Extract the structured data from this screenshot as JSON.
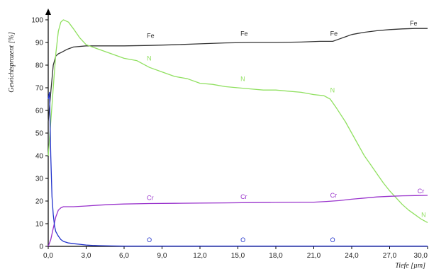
{
  "chart_data": {
    "type": "line",
    "title": "",
    "xlabel": "Tiefe [µm]",
    "ylabel": "Gewichtsprozent [%]",
    "xlim": [
      0,
      30
    ],
    "ylim": [
      0,
      100
    ],
    "x_ticks": [
      "0,0",
      "3,0",
      "6,0",
      "9,0",
      "12,0",
      "15,0",
      "18,0",
      "21,0",
      "24,0",
      "27,0",
      "30,0"
    ],
    "y_ticks": [
      "0",
      "10",
      "20",
      "30",
      "40",
      "50",
      "60",
      "70",
      "80",
      "90",
      "100"
    ],
    "grid": false,
    "series": [
      {
        "name": "Fe",
        "color": "#333333",
        "label_positions": [
          [
            7.8,
            92
          ],
          [
            15.2,
            93
          ],
          [
            22.3,
            93
          ],
          [
            28.6,
            97.5
          ]
        ],
        "points": [
          [
            0,
            55
          ],
          [
            0.2,
            68
          ],
          [
            0.4,
            80
          ],
          [
            0.6,
            84
          ],
          [
            0.8,
            85
          ],
          [
            1.0,
            85.5
          ],
          [
            1.5,
            87
          ],
          [
            2.0,
            88
          ],
          [
            3.0,
            88.5
          ],
          [
            4,
            88.5
          ],
          [
            6,
            88.5
          ],
          [
            8,
            88.7
          ],
          [
            10,
            89
          ],
          [
            12,
            89.4
          ],
          [
            14,
            89.8
          ],
          [
            16,
            90
          ],
          [
            18,
            90
          ],
          [
            20,
            90.2
          ],
          [
            21.5,
            90.5
          ],
          [
            22.5,
            90.5
          ],
          [
            23,
            91.5
          ],
          [
            23.5,
            92.5
          ],
          [
            24,
            93.5
          ],
          [
            25,
            94.5
          ],
          [
            26,
            95.2
          ],
          [
            27,
            95.7
          ],
          [
            28,
            96
          ],
          [
            29,
            96.2
          ],
          [
            30,
            96.2
          ]
        ]
      },
      {
        "name": "N",
        "color": "#90e060",
        "label_positions": [
          [
            7.8,
            82
          ],
          [
            15.2,
            73
          ],
          [
            22.3,
            68
          ],
          [
            29.5,
            13
          ]
        ],
        "points": [
          [
            0,
            40
          ],
          [
            0.2,
            55
          ],
          [
            0.4,
            70
          ],
          [
            0.6,
            85
          ],
          [
            0.8,
            95
          ],
          [
            1.0,
            99
          ],
          [
            1.2,
            100
          ],
          [
            1.6,
            99
          ],
          [
            2.0,
            96
          ],
          [
            2.5,
            92
          ],
          [
            3,
            89
          ],
          [
            4,
            87
          ],
          [
            5,
            85
          ],
          [
            6,
            83
          ],
          [
            7,
            82
          ],
          [
            8,
            79
          ],
          [
            9,
            77
          ],
          [
            10,
            75
          ],
          [
            11,
            74
          ],
          [
            12,
            72
          ],
          [
            13,
            71.5
          ],
          [
            14,
            70.5
          ],
          [
            15,
            70
          ],
          [
            16,
            69.5
          ],
          [
            17,
            69
          ],
          [
            18,
            69
          ],
          [
            19,
            68.5
          ],
          [
            20,
            68
          ],
          [
            21,
            67
          ],
          [
            21.8,
            66.5
          ],
          [
            22.3,
            65
          ],
          [
            22.8,
            61
          ],
          [
            23.5,
            55
          ],
          [
            24,
            50
          ],
          [
            24.5,
            45
          ],
          [
            25,
            40
          ],
          [
            25.5,
            36
          ],
          [
            26,
            32
          ],
          [
            26.5,
            28
          ],
          [
            27,
            24.5
          ],
          [
            27.5,
            21.5
          ],
          [
            28,
            18.5
          ],
          [
            28.5,
            16
          ],
          [
            29,
            14
          ],
          [
            29.5,
            12
          ],
          [
            30,
            10.5
          ]
        ]
      },
      {
        "name": "Cr",
        "color": "#9933cc",
        "label_positions": [
          [
            7.8,
            20.5
          ],
          [
            15.2,
            21
          ],
          [
            22.3,
            21.5
          ],
          [
            29.2,
            23.5
          ]
        ],
        "points": [
          [
            0,
            0
          ],
          [
            0.2,
            3
          ],
          [
            0.4,
            8
          ],
          [
            0.6,
            13
          ],
          [
            0.8,
            16
          ],
          [
            1.0,
            17
          ],
          [
            1.2,
            17.5
          ],
          [
            1.5,
            17.5
          ],
          [
            2,
            17.5
          ],
          [
            3,
            17.8
          ],
          [
            4,
            18.2
          ],
          [
            5,
            18.5
          ],
          [
            6,
            18.7
          ],
          [
            8,
            18.9
          ],
          [
            10,
            19
          ],
          [
            12,
            19.1
          ],
          [
            14,
            19.2
          ],
          [
            16,
            19.3
          ],
          [
            18,
            19.4
          ],
          [
            20,
            19.5
          ],
          [
            21,
            19.5
          ],
          [
            22,
            19.8
          ],
          [
            23,
            20.2
          ],
          [
            24,
            20.8
          ],
          [
            25,
            21.3
          ],
          [
            26,
            21.8
          ],
          [
            27,
            22.1
          ],
          [
            28,
            22.3
          ],
          [
            29,
            22.4
          ],
          [
            30,
            22.5
          ]
        ]
      },
      {
        "name": "O",
        "color": "#2233cc",
        "label_positions": [
          [
            7.8,
            1.8
          ],
          [
            15.2,
            1.8
          ],
          [
            22.3,
            1.8
          ]
        ],
        "points": [
          [
            0,
            65
          ],
          [
            0.1,
            68
          ],
          [
            0.2,
            40
          ],
          [
            0.3,
            22
          ],
          [
            0.4,
            14
          ],
          [
            0.5,
            9
          ],
          [
            0.6,
            6.5
          ],
          [
            0.8,
            4.5
          ],
          [
            1.0,
            3
          ],
          [
            1.2,
            2.2
          ],
          [
            1.6,
            1.5
          ],
          [
            2.0,
            1.2
          ],
          [
            2.5,
            0.9
          ],
          [
            3,
            0.6
          ],
          [
            3.5,
            0.4
          ],
          [
            4,
            0.3
          ],
          [
            5,
            0.2
          ],
          [
            6,
            0.1
          ],
          [
            8,
            0.1
          ],
          [
            30,
            0.1
          ]
        ]
      }
    ]
  }
}
